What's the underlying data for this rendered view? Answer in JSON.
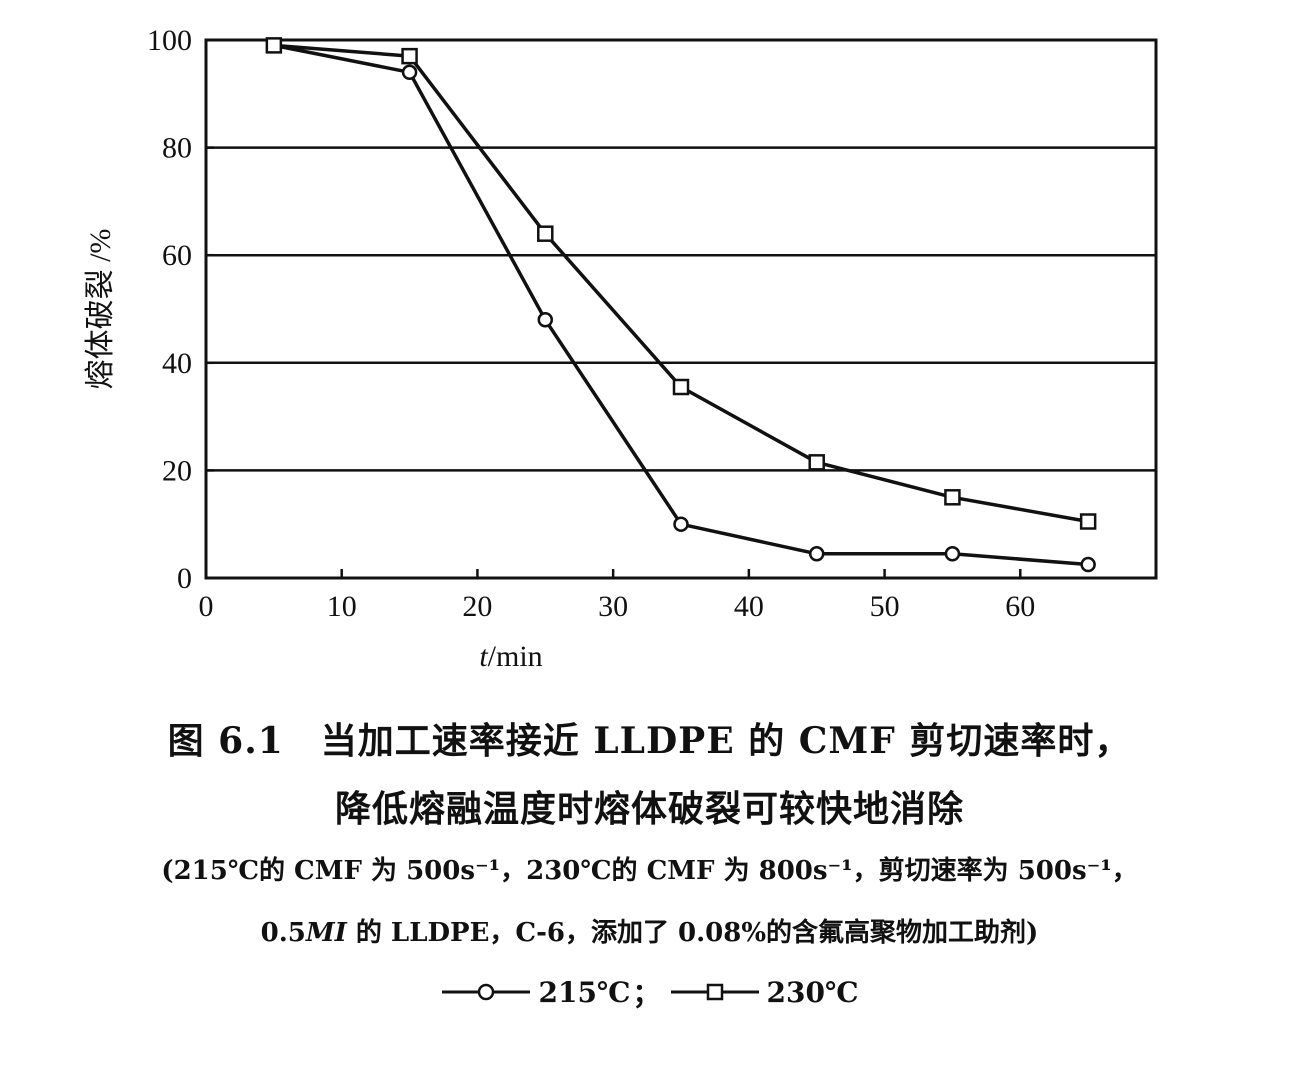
{
  "chart_data": {
    "type": "line",
    "xlabel_italic": "t",
    "xlabel_rest": "/min",
    "ylabel": "熔体破裂 /%",
    "xlim": [
      0,
      70
    ],
    "ylim": [
      0,
      100
    ],
    "xticks": [
      0,
      10,
      20,
      30,
      40,
      50,
      60
    ],
    "yticks": [
      0,
      20,
      40,
      60,
      80,
      100
    ],
    "grid": "horizontal",
    "series": [
      {
        "name": "215℃",
        "marker": "circle",
        "x": [
          5,
          15,
          25,
          35,
          45,
          55,
          65
        ],
        "y": [
          99,
          94,
          48,
          10,
          4.5,
          4.5,
          2.5
        ]
      },
      {
        "name": "230℃",
        "marker": "square",
        "x": [
          5,
          15,
          25,
          35,
          45,
          55,
          65
        ],
        "y": [
          99,
          97,
          64,
          35.5,
          21.5,
          15,
          10.5
        ]
      }
    ]
  },
  "caption": {
    "line1": "图 6.1　当加工速率接近 LLDPE 的 CMF 剪切速率时，",
    "line2": "降低熔融温度时熔体破裂可较快地消除",
    "note1": "(215℃的 CMF 为 500s⁻¹，230℃的 CMF 为 800s⁻¹，剪切速率为 500s⁻¹，",
    "note2_a": "0.5",
    "note2_mi": "MI",
    "note2_b": " 的 LLDPE，C-6，添加了 0.08%的含氟高聚物加工助剂)"
  },
  "legend": {
    "item1": "215℃",
    "separator": "；",
    "item2": "230℃"
  }
}
